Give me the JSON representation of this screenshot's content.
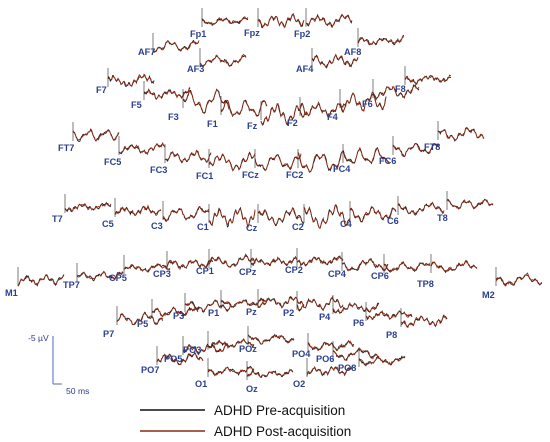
{
  "chart_data": {
    "type": "line",
    "subtype": "topographic-erp-montage",
    "grid": false,
    "legend_position": "bottom-center",
    "scale_bar": {
      "amplitude_label": "-5 µV",
      "time_label": "50 ms"
    },
    "series": [
      {
        "name": "ADHD Pre-acquisition",
        "color": "#111111"
      },
      {
        "name": "ADHD Post-acquisition",
        "color": "#8b2a14"
      }
    ],
    "channels": [
      "Fp1",
      "Fpz",
      "Fp2",
      "AF7",
      "AF3",
      "AF4",
      "AF8",
      "F7",
      "F5",
      "F3",
      "F1",
      "Fz",
      "F2",
      "F4",
      "F6",
      "F8",
      "FT7",
      "FC5",
      "FC3",
      "FC1",
      "FCz",
      "FC2",
      "FC4",
      "FC6",
      "FT8",
      "T7",
      "C5",
      "C3",
      "C1",
      "Cz",
      "C2",
      "C4",
      "C6",
      "T8",
      "M1",
      "TP7",
      "CP5",
      "CP3",
      "CP1",
      "CPz",
      "CP2",
      "CP4",
      "CP6",
      "TP8",
      "M2",
      "P7",
      "P5",
      "P3",
      "P1",
      "Pz",
      "P2",
      "P4",
      "P6",
      "P8",
      "PO7",
      "PO5",
      "PO3",
      "POz",
      "PO4",
      "PO6",
      "PO8",
      "O1",
      "Oz",
      "O2"
    ]
  }
}
